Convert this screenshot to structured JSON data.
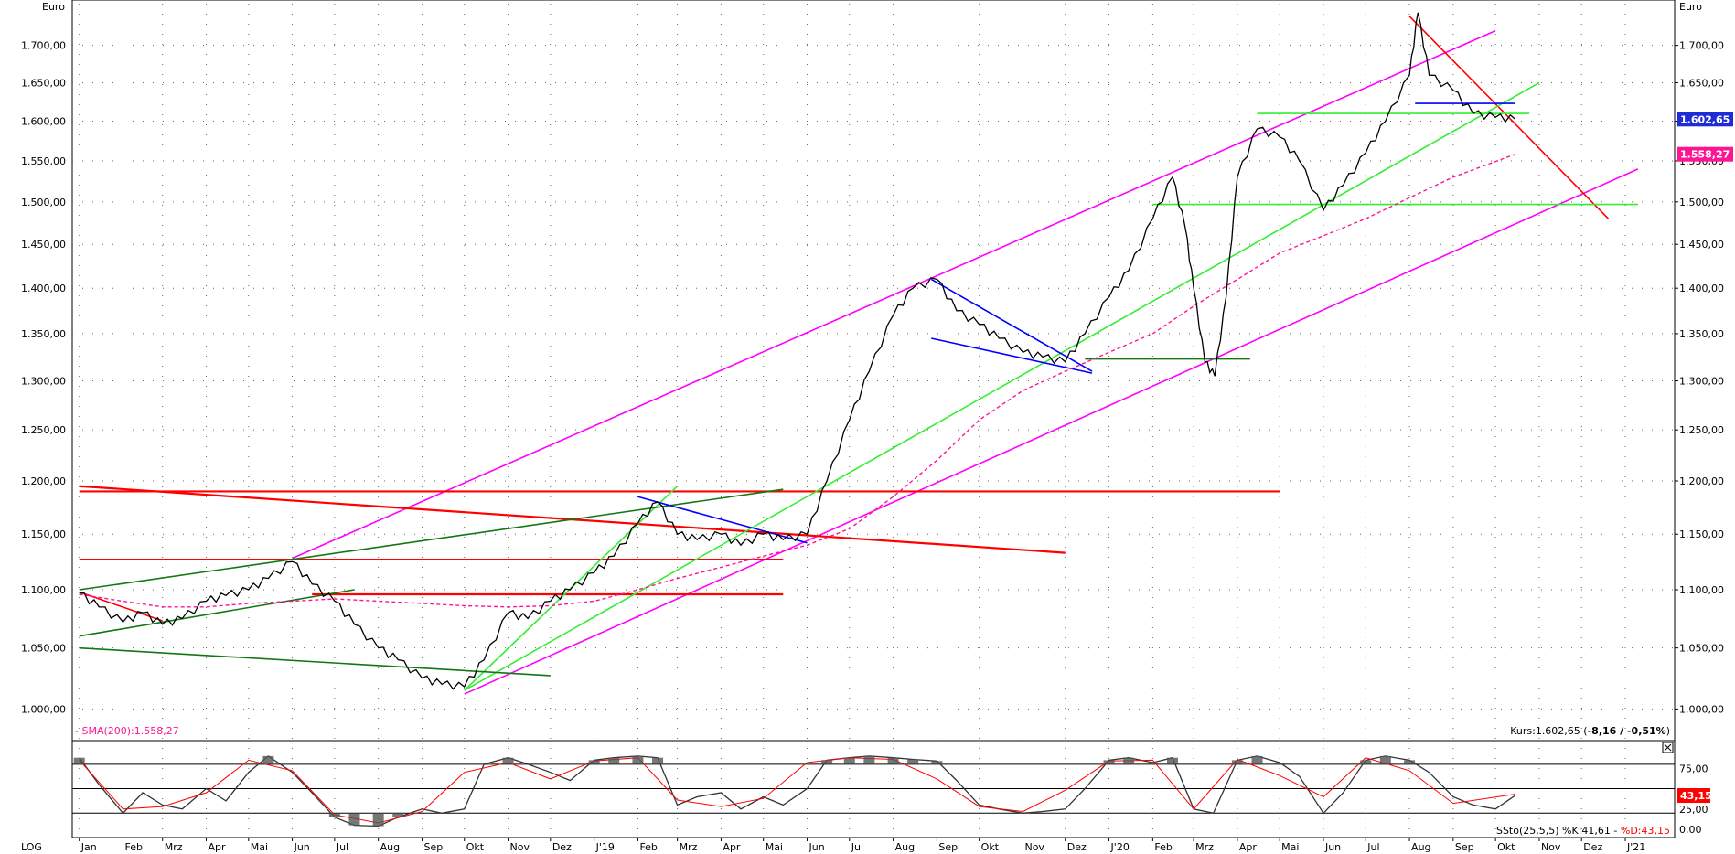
{
  "unit_label": "Euro",
  "log_label": "LOG",
  "colors": {
    "price": "#000000",
    "sma": "#ff1493",
    "magenta_channel": "#ff00ff",
    "red_line": "#ff0000",
    "light_green": "#33ee33",
    "dark_green": "#117711",
    "blue_line": "#0000ff",
    "price_badge": "#1f2bd6",
    "sma_badge": "#ff1493",
    "stoch_k": "#333333",
    "stoch_d": "#ff0000",
    "stoch_fill": "#555555",
    "stoch_badge": "#ff0000"
  },
  "chart_data": [
    {
      "type": "line",
      "title": "",
      "ylabel": "Euro",
      "scale": "log",
      "ylim": [
        975,
        1750
      ],
      "y_ticks": [
        "1.000,00",
        "1.050,00",
        "1.100,00",
        "1.150,00",
        "1.200,00",
        "1.250,00",
        "1.300,00",
        "1.350,00",
        "1.400,00",
        "1.450,00",
        "1.500,00",
        "1.550,00",
        "1.600,00",
        "1.650,00",
        "1.700,00"
      ],
      "y_tick_values": [
        1000,
        1050,
        1100,
        1150,
        1200,
        1250,
        1300,
        1350,
        1400,
        1450,
        1500,
        1550,
        1600,
        1650,
        1700
      ],
      "x_ticks": [
        "Jan",
        "Feb",
        "Mrz",
        "Apr",
        "Mai",
        "Jun",
        "Jul",
        "Aug",
        "Sep",
        "Okt",
        "Nov",
        "Dez",
        "J'19",
        "Feb",
        "Mrz",
        "Apr",
        "Mai",
        "Jun",
        "Jul",
        "Aug",
        "Sep",
        "Okt",
        "Nov",
        "Dez",
        "J'20",
        "Feb",
        "Mrz",
        "Apr",
        "Mai",
        "Jun",
        "Jul",
        "Aug",
        "Sep",
        "Okt",
        "Nov",
        "Dez",
        "J'21"
      ],
      "x_months": [
        "2018-01",
        "2018-02",
        "2018-03",
        "2018-04",
        "2018-05",
        "2018-06",
        "2018-07",
        "2018-08",
        "2018-09",
        "2018-10",
        "2018-11",
        "2018-12",
        "2019-01",
        "2019-02",
        "2019-03",
        "2019-04",
        "2019-05",
        "2019-06",
        "2019-07",
        "2019-08",
        "2019-09",
        "2019-10",
        "2019-11",
        "2019-12",
        "2020-01",
        "2020-02",
        "2020-03",
        "2020-04",
        "2020-05",
        "2020-06",
        "2020-07",
        "2020-08",
        "2020-09",
        "2020-10",
        "2020-11",
        "2020-12",
        "2021-01"
      ],
      "series": [
        {
          "name": "Kurs",
          "x": [
            "2018-01-01",
            "2018-01-15",
            "2018-02-01",
            "2018-02-15",
            "2018-03-01",
            "2018-03-15",
            "2018-04-01",
            "2018-04-15",
            "2018-05-01",
            "2018-05-15",
            "2018-06-01",
            "2018-06-15",
            "2018-07-01",
            "2018-07-15",
            "2018-08-01",
            "2018-08-15",
            "2018-09-01",
            "2018-09-15",
            "2018-10-01",
            "2018-10-15",
            "2018-11-01",
            "2018-11-15",
            "2018-12-01",
            "2018-12-15",
            "2019-01-01",
            "2019-01-15",
            "2019-02-01",
            "2019-02-15",
            "2019-03-01",
            "2019-03-15",
            "2019-04-01",
            "2019-04-15",
            "2019-05-01",
            "2019-05-15",
            "2019-06-01",
            "2019-06-15",
            "2019-07-01",
            "2019-07-15",
            "2019-08-01",
            "2019-08-15",
            "2019-09-01",
            "2019-09-15",
            "2019-10-01",
            "2019-10-15",
            "2019-11-01",
            "2019-11-15",
            "2019-12-01",
            "2019-12-15",
            "2020-01-01",
            "2020-01-15",
            "2020-02-01",
            "2020-02-15",
            "2020-02-24",
            "2020-03-01",
            "2020-03-09",
            "2020-03-16",
            "2020-03-24",
            "2020-04-01",
            "2020-04-15",
            "2020-05-01",
            "2020-05-15",
            "2020-06-01",
            "2020-06-15",
            "2020-07-01",
            "2020-07-15",
            "2020-08-01",
            "2020-08-07",
            "2020-08-15",
            "2020-09-01",
            "2020-09-15",
            "2020-10-01",
            "2020-10-15"
          ],
          "values": [
            1097,
            1085,
            1072,
            1080,
            1070,
            1075,
            1090,
            1095,
            1100,
            1110,
            1125,
            1105,
            1090,
            1070,
            1050,
            1040,
            1025,
            1020,
            1018,
            1040,
            1080,
            1075,
            1090,
            1100,
            1115,
            1130,
            1160,
            1180,
            1150,
            1145,
            1150,
            1140,
            1150,
            1145,
            1150,
            1200,
            1260,
            1310,
            1370,
            1400,
            1410,
            1375,
            1360,
            1345,
            1330,
            1325,
            1320,
            1350,
            1390,
            1420,
            1480,
            1530,
            1470,
            1400,
            1320,
            1305,
            1390,
            1530,
            1590,
            1580,
            1550,
            1490,
            1520,
            1560,
            1600,
            1660,
            1745,
            1660,
            1640,
            1610,
            1605,
            1602.65
          ]
        },
        {
          "name": "SMA(200)",
          "x": [
            "2018-01-01",
            "2018-02-01",
            "2018-03-01",
            "2018-04-01",
            "2018-05-01",
            "2018-06-01",
            "2018-07-01",
            "2018-08-01",
            "2018-09-01",
            "2018-10-01",
            "2018-11-01",
            "2018-12-01",
            "2019-01-01",
            "2019-02-01",
            "2019-03-01",
            "2019-04-01",
            "2019-05-01",
            "2019-06-01",
            "2019-07-01",
            "2019-08-01",
            "2019-09-01",
            "2019-10-01",
            "2019-11-01",
            "2019-12-01",
            "2020-01-01",
            "2020-02-01",
            "2020-03-01",
            "2020-04-01",
            "2020-05-01",
            "2020-06-01",
            "2020-07-01",
            "2020-08-01",
            "2020-09-01",
            "2020-10-15"
          ],
          "values": [
            1096,
            1090,
            1085,
            1085,
            1088,
            1090,
            1092,
            1090,
            1088,
            1086,
            1085,
            1086,
            1090,
            1100,
            1110,
            1120,
            1130,
            1140,
            1155,
            1185,
            1220,
            1260,
            1290,
            1310,
            1330,
            1350,
            1380,
            1410,
            1440,
            1460,
            1480,
            1505,
            1530,
            1558.27
          ]
        }
      ],
      "trend_lines": [
        {
          "name": "magenta-channel-upper",
          "color": "magenta",
          "points": [
            [
              "2018-06-01",
              1128
            ],
            [
              "2020-10-01",
              1720
            ]
          ]
        },
        {
          "name": "magenta-channel-lower",
          "color": "magenta",
          "points": [
            [
              "2018-10-01",
              1012
            ],
            [
              "2021-01-10",
              1540
            ]
          ]
        },
        {
          "name": "red-downtrend-2020",
          "color": "red",
          "points": [
            [
              "2020-08-01",
              1740
            ],
            [
              "2020-12-20",
              1480
            ]
          ]
        },
        {
          "name": "red-resistance-2018",
          "color": "red",
          "points": [
            [
              "2018-01-01",
              1195
            ],
            [
              "2019-12-01",
              1133
            ]
          ]
        },
        {
          "name": "red-horizontal-1190",
          "color": "red",
          "points": [
            [
              "2018-01-01",
              1190
            ],
            [
              "2020-05-01",
              1190
            ]
          ]
        },
        {
          "name": "red-horizontal-1127",
          "color": "red",
          "points": [
            [
              "2018-01-01",
              1127
            ],
            [
              "2019-05-15",
              1127
            ]
          ]
        },
        {
          "name": "red-horizontal-1096",
          "color": "red",
          "points": [
            [
              "2018-06-15",
              1096
            ],
            [
              "2019-05-15",
              1096
            ]
          ]
        },
        {
          "name": "red-short-2018",
          "color": "red",
          "points": [
            [
              "2018-01-01",
              1098
            ],
            [
              "2018-03-01",
              1073
            ]
          ]
        },
        {
          "name": "green-support-2019",
          "color": "light_green",
          "points": [
            [
              "2018-10-01",
              1015
            ],
            [
              "2020-11-01",
              1650
            ]
          ]
        },
        {
          "name": "green-wedge-2019",
          "color": "light_green",
          "points": [
            [
              "2018-10-01",
              1015
            ],
            [
              "2019-03-01",
              1195
            ]
          ]
        },
        {
          "name": "green-horizontal-1497",
          "color": "light_green",
          "points": [
            [
              "2020-02-01",
              1497
            ],
            [
              "2021-01-10",
              1497
            ]
          ]
        },
        {
          "name": "green-horizontal-1610",
          "color": "light_green",
          "points": [
            [
              "2020-04-15",
              1610
            ],
            [
              "2020-10-25",
              1610
            ]
          ]
        },
        {
          "name": "green-horizontal-1323",
          "color": "dark_green",
          "points": [
            [
              "2019-12-15",
              1323
            ],
            [
              "2020-04-10",
              1323
            ]
          ]
        },
        {
          "name": "darkgreen-upper-2018",
          "color": "dark_green",
          "points": [
            [
              "2018-01-01",
              1100
            ],
            [
              "2019-05-15",
              1192
            ]
          ]
        },
        {
          "name": "darkgreen-lower-2018",
          "color": "dark_green",
          "points": [
            [
              "2018-01-01",
              1060
            ],
            [
              "2018-07-15",
              1100
            ]
          ]
        },
        {
          "name": "darkgreen-falling-2018",
          "color": "dark_green",
          "points": [
            [
              "2018-01-01",
              1050
            ],
            [
              "2018-12-01",
              1027
            ]
          ]
        },
        {
          "name": "blue-triangle-top",
          "color": "blue",
          "points": [
            [
              "2019-08-28",
              1410
            ],
            [
              "2019-12-20",
              1310
            ]
          ]
        },
        {
          "name": "blue-triangle-bottom",
          "color": "blue",
          "points": [
            [
              "2019-08-28",
              1345
            ],
            [
              "2019-12-20",
              1308
            ]
          ]
        },
        {
          "name": "blue-pennant-2019",
          "color": "blue",
          "points": [
            [
              "2019-02-01",
              1185
            ],
            [
              "2019-06-01",
              1142
            ]
          ]
        },
        {
          "name": "blue-horizontal-1623",
          "color": "blue",
          "points": [
            [
              "2020-08-05",
              1623
            ],
            [
              "2020-10-15",
              1623
            ]
          ]
        }
      ],
      "annotations": {
        "bottom_left": "- SMA(200):1.558,27",
        "bottom_right_prefix": "Kurs:1.602,65 (",
        "bottom_right_bold": "-8,16 / -0,51%",
        "bottom_right_suffix": ")",
        "price_badge": "1.602,65",
        "sma_badge": "1.558,27"
      }
    },
    {
      "type": "line",
      "title": "",
      "ylim": [
        -10,
        100
      ],
      "y_ticks": [
        "75,00",
        "25,00",
        "0,00"
      ],
      "y_tick_values": [
        75,
        25,
        0
      ],
      "reference_lines": [
        80,
        50,
        20
      ],
      "series": [
        {
          "name": "%K",
          "x": [
            "2018-01-01",
            "2018-01-15",
            "2018-02-01",
            "2018-02-15",
            "2018-03-01",
            "2018-03-15",
            "2018-04-01",
            "2018-04-15",
            "2018-05-01",
            "2018-05-15",
            "2018-06-01",
            "2018-06-15",
            "2018-07-01",
            "2018-07-15",
            "2018-08-01",
            "2018-08-15",
            "2018-09-01",
            "2018-09-15",
            "2018-10-01",
            "2018-10-15",
            "2018-11-01",
            "2018-11-15",
            "2018-12-01",
            "2018-12-15",
            "2019-01-01",
            "2019-01-15",
            "2019-02-01",
            "2019-02-15",
            "2019-03-01",
            "2019-03-15",
            "2019-04-01",
            "2019-04-15",
            "2019-05-01",
            "2019-05-15",
            "2019-06-01",
            "2019-06-15",
            "2019-07-01",
            "2019-07-15",
            "2019-08-01",
            "2019-08-15",
            "2019-09-01",
            "2019-09-15",
            "2019-10-01",
            "2019-10-15",
            "2019-11-01",
            "2019-11-15",
            "2019-12-01",
            "2019-12-15",
            "2020-01-01",
            "2020-01-15",
            "2020-02-01",
            "2020-02-15",
            "2020-03-01",
            "2020-03-15",
            "2020-04-01",
            "2020-04-15",
            "2020-05-01",
            "2020-05-15",
            "2020-06-01",
            "2020-06-15",
            "2020-07-01",
            "2020-07-15",
            "2020-08-01",
            "2020-08-15",
            "2020-09-01",
            "2020-09-15",
            "2020-10-01",
            "2020-10-15"
          ],
          "values": [
            88,
            55,
            20,
            45,
            30,
            25,
            50,
            35,
            70,
            90,
            70,
            45,
            15,
            5,
            4,
            15,
            25,
            20,
            25,
            80,
            88,
            80,
            70,
            60,
            85,
            88,
            90,
            88,
            30,
            40,
            45,
            25,
            40,
            30,
            50,
            85,
            88,
            90,
            88,
            86,
            84,
            60,
            30,
            25,
            20,
            22,
            25,
            50,
            85,
            88,
            82,
            88,
            25,
            20,
            85,
            90,
            82,
            65,
            20,
            45,
            85,
            90,
            85,
            70,
            40,
            30,
            25,
            41.61
          ]
        },
        {
          "name": "%D",
          "x": [
            "2018-01-01",
            "2018-02-01",
            "2018-03-01",
            "2018-04-01",
            "2018-05-01",
            "2018-06-01",
            "2018-07-01",
            "2018-08-01",
            "2018-09-01",
            "2018-10-01",
            "2018-11-01",
            "2018-12-01",
            "2019-01-01",
            "2019-02-01",
            "2019-03-01",
            "2019-04-01",
            "2019-05-01",
            "2019-06-01",
            "2019-07-01",
            "2019-08-01",
            "2019-09-01",
            "2019-10-01",
            "2019-11-01",
            "2019-12-01",
            "2020-01-01",
            "2020-02-01",
            "2020-03-01",
            "2020-04-01",
            "2020-05-01",
            "2020-06-01",
            "2020-07-01",
            "2020-08-01",
            "2020-09-01",
            "2020-10-15"
          ],
          "values": [
            85,
            25,
            28,
            45,
            85,
            72,
            18,
            8,
            22,
            70,
            82,
            62,
            84,
            88,
            36,
            28,
            38,
            82,
            88,
            86,
            62,
            28,
            22,
            48,
            84,
            85,
            25,
            86,
            66,
            40,
            88,
            72,
            32,
            43.15
          ]
        }
      ],
      "annotations": {
        "bottom_right_prefix": "SSto(25,5,5) %K:41,61 - ",
        "bottom_right_d": "%D:43,15",
        "badge": "43,15"
      }
    }
  ]
}
